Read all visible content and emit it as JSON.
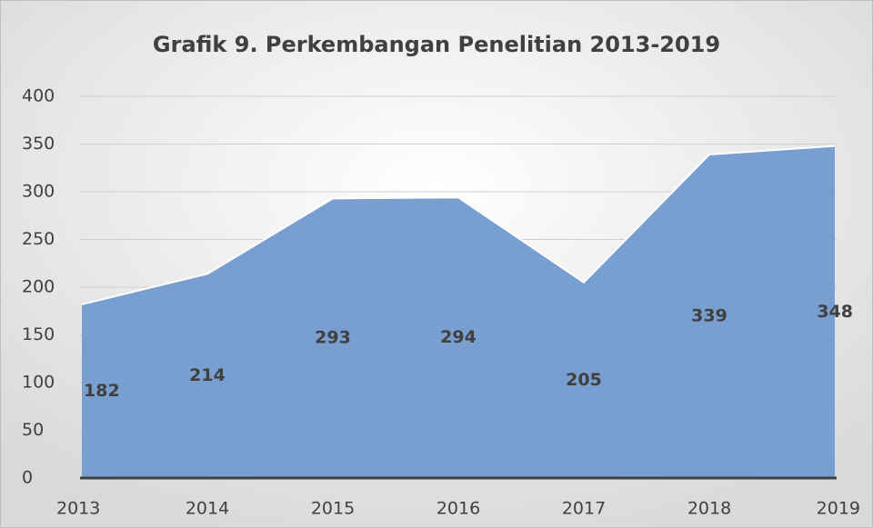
{
  "chart_data": {
    "type": "area",
    "title": "Grafik 9. Perkembangan Penelitian 2013-2019",
    "categories": [
      "2013",
      "2014",
      "2015",
      "2016",
      "2017",
      "2018",
      "2019"
    ],
    "values": [
      182,
      214,
      293,
      294,
      205,
      339,
      348
    ],
    "color": "#789fcf",
    "ylim": [
      0,
      400
    ],
    "yticks": [
      0,
      50,
      100,
      150,
      200,
      250,
      300,
      350,
      400
    ],
    "grid": true
  }
}
